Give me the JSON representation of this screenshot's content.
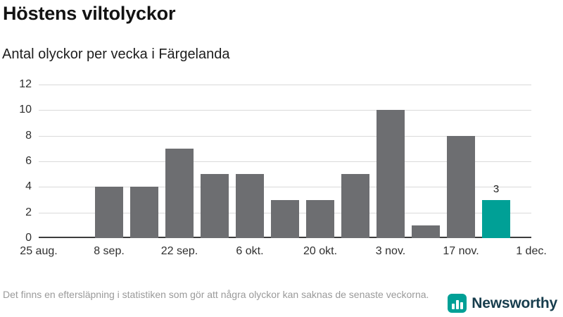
{
  "header": {
    "title": "Höstens viltolyckor",
    "subtitle": "Antal olyckor per vecka i Färgelanda"
  },
  "chart_data": {
    "type": "bar",
    "title": "Höstens viltolyckor",
    "subtitle": "Antal olyckor per vecka i Färgelanda",
    "xlabel": "",
    "ylabel": "",
    "ylim": [
      0,
      12
    ],
    "y_ticks": [
      0,
      2,
      4,
      6,
      8,
      10,
      12
    ],
    "x_tick_labels": [
      "25 aug.",
      "8 sep.",
      "22 sep.",
      "6 okt.",
      "20 okt.",
      "3 nov.",
      "17 nov.",
      "1 dec."
    ],
    "x_tick_week_step": 2,
    "grid": "horizontal",
    "weeks": [
      {
        "week": "25 aug.",
        "value": 0
      },
      {
        "week": "1 sep.",
        "value": 0
      },
      {
        "week": "8 sep.",
        "value": 4
      },
      {
        "week": "15 sep.",
        "value": 4
      },
      {
        "week": "22 sep.",
        "value": 7
      },
      {
        "week": "29 sep.",
        "value": 5
      },
      {
        "week": "6 okt.",
        "value": 5
      },
      {
        "week": "13 okt.",
        "value": 3
      },
      {
        "week": "20 okt.",
        "value": 3
      },
      {
        "week": "27 okt.",
        "value": 5
      },
      {
        "week": "3 nov.",
        "value": 10
      },
      {
        "week": "10 nov.",
        "value": 1
      },
      {
        "week": "17 nov.",
        "value": 8
      },
      {
        "week": "24 nov.",
        "value": 3
      },
      {
        "week": "1 dec.",
        "value": null
      }
    ],
    "highlight_index": 13,
    "bar_label": {
      "text": "3",
      "week_index": 13
    }
  },
  "colors": {
    "bar": "#6d6e71",
    "accent": "#00a096",
    "gridline": "#dadada",
    "axis": "#3c3c3c",
    "brand_text": "#173d4d"
  },
  "footer": {
    "disclaimer": "Det finns en eftersläpning i statistiken som gör att några olyckor kan saknas de senaste veckorna.",
    "brand": "Newsworthy"
  }
}
